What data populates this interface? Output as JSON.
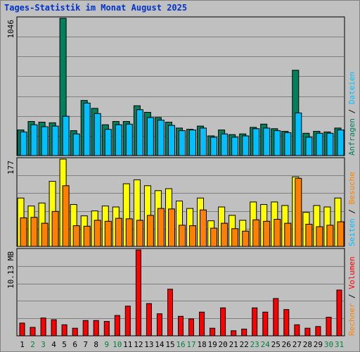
{
  "title": "Tages-Statistik im Monat August 2025",
  "colors": {
    "background": "#c0c0c0",
    "panel": "#c0c0c0",
    "grid": "#808080",
    "anfragen": "#00805c",
    "dateien": "#00c0ff",
    "seiten": "#ffff00",
    "besuche": "#ff8000",
    "rechner": "#ff8000",
    "volumen": "#ff0000",
    "title": "#0033cc",
    "weekend": "#008040",
    "weekday": "#000000"
  },
  "chart_data": [
    {
      "type": "bar",
      "panel": "hits",
      "ytick_label": "1046",
      "ylim": [
        0,
        1046
      ],
      "categories": [
        "1",
        "2",
        "3",
        "4",
        "5",
        "6",
        "7",
        "8",
        "9",
        "10",
        "11",
        "12",
        "13",
        "14",
        "15",
        "16",
        "17",
        "18",
        "19",
        "20",
        "21",
        "22",
        "23",
        "24",
        "25",
        "26",
        "27",
        "28",
        "29",
        "30",
        "31"
      ],
      "series": [
        {
          "name": "Anfragen",
          "values": [
            195,
            260,
            255,
            250,
            1046,
            190,
            420,
            360,
            235,
            260,
            260,
            380,
            330,
            290,
            255,
            210,
            200,
            225,
            150,
            195,
            160,
            165,
            215,
            240,
            205,
            185,
            650,
            170,
            185,
            180,
            210
          ]
        },
        {
          "name": "Dateien",
          "values": [
            180,
            235,
            220,
            225,
            300,
            165,
            400,
            320,
            200,
            235,
            240,
            350,
            290,
            270,
            230,
            190,
            195,
            210,
            140,
            165,
            140,
            150,
            205,
            210,
            190,
            175,
            325,
            140,
            170,
            170,
            195
          ]
        }
      ],
      "right_labels": [
        "Anfragen",
        "/",
        "Dateien"
      ]
    },
    {
      "type": "bar",
      "panel": "visits",
      "ytick_label": "177",
      "ylim": [
        0,
        177
      ],
      "categories": [
        "1",
        "2",
        "3",
        "4",
        "5",
        "6",
        "7",
        "8",
        "9",
        "10",
        "11",
        "12",
        "13",
        "14",
        "15",
        "16",
        "17",
        "18",
        "19",
        "20",
        "21",
        "22",
        "23",
        "24",
        "25",
        "26",
        "27",
        "28",
        "29",
        "30",
        "31"
      ],
      "series": [
        {
          "name": "Seiten",
          "values": [
            98,
            82,
            88,
            132,
            177,
            85,
            62,
            72,
            82,
            80,
            127,
            135,
            123,
            113,
            117,
            92,
            77,
            98,
            52,
            80,
            63,
            53,
            90,
            85,
            90,
            83,
            141,
            69,
            83,
            80,
            98
          ]
        },
        {
          "name": "Besuche",
          "values": [
            58,
            59,
            47,
            71,
            123,
            42,
            41,
            53,
            51,
            57,
            56,
            53,
            63,
            77,
            76,
            43,
            42,
            74,
            37,
            47,
            36,
            31,
            54,
            51,
            55,
            47,
            138,
            45,
            40,
            43,
            50
          ]
        }
      ],
      "right_labels": [
        "Seiten",
        "/",
        "Besuche"
      ]
    },
    {
      "type": "bar",
      "panel": "volume",
      "ytick_label": "10.13 MB",
      "ylim": [
        0,
        10.13
      ],
      "categories": [
        "1",
        "2",
        "3",
        "4",
        "5",
        "6",
        "7",
        "8",
        "9",
        "10",
        "11",
        "12",
        "13",
        "14",
        "15",
        "16",
        "17",
        "18",
        "19",
        "20",
        "21",
        "22",
        "23",
        "24",
        "25",
        "26",
        "27",
        "28",
        "29",
        "30",
        "31"
      ],
      "series": [
        {
          "name": "Volumen",
          "values": [
            1.5,
            1.0,
            2.1,
            1.9,
            1.3,
            0.9,
            1.8,
            1.8,
            1.7,
            2.4,
            3.5,
            10.13,
            3.8,
            2.6,
            5.5,
            2.3,
            2.0,
            2.8,
            0.9,
            3.3,
            0.6,
            0.8,
            3.3,
            2.8,
            4.4,
            3.1,
            1.3,
            0.9,
            1.1,
            2.2,
            5.4
          ]
        }
      ],
      "right_labels": [
        "Rechner",
        "/",
        "Volumen"
      ]
    }
  ],
  "x_axis": {
    "labels": [
      "1",
      "2",
      "3",
      "4",
      "5",
      "6",
      "7",
      "8",
      "9",
      "10",
      "11",
      "12",
      "13",
      "14",
      "15",
      "16",
      "17",
      "18",
      "19",
      "20",
      "21",
      "22",
      "23",
      "24",
      "25",
      "26",
      "27",
      "28",
      "29",
      "30",
      "31"
    ],
    "weekend_days": [
      "2",
      "3",
      "9",
      "10",
      "16",
      "17",
      "23",
      "24",
      "30",
      "31"
    ]
  }
}
